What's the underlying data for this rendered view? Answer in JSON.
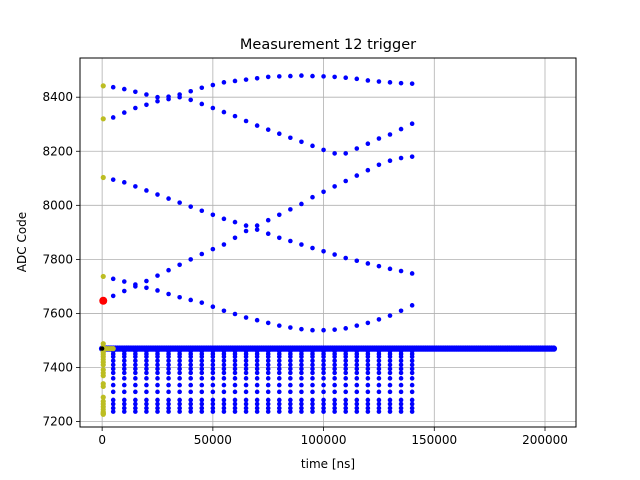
{
  "chart_data": {
    "type": "scatter",
    "title": "Measurement 12 trigger",
    "xlabel": "time [ns]",
    "ylabel": "ADC Code",
    "xlim": [
      -10000,
      214000
    ],
    "ylim": [
      7180,
      8545
    ],
    "xticks": [
      0,
      50000,
      100000,
      150000,
      200000
    ],
    "xtick_labels": [
      "0",
      "50000",
      "100000",
      "150000",
      "200000"
    ],
    "yticks": [
      7200,
      7400,
      7600,
      7800,
      8000,
      8200,
      8400
    ],
    "ytick_labels": [
      "7200",
      "7400",
      "7600",
      "7800",
      "8000",
      "8200",
      "8400"
    ],
    "grid": true,
    "colors": {
      "main": "#0000ff",
      "initial": "#bcbd22",
      "trigger": "#ff0000",
      "dark": "#000000"
    },
    "series": [
      {
        "color": "#0000ff",
        "description": "sinusoidal tracks of blue dots",
        "x_start": 5000,
        "x_end": 140000,
        "step": 5000,
        "tracks": [
          [
            8437,
            8430,
            8420,
            8410,
            8400,
            8402,
            8410,
            8422,
            8435,
            8445,
            8455,
            8460,
            8465,
            8470,
            8475,
            8477,
            8478,
            8480,
            8478,
            8477,
            8475,
            8472,
            8468,
            8462,
            8458,
            8455,
            8452,
            8450
          ],
          [
            8325,
            8343,
            8360,
            8372,
            8385,
            8393,
            8400,
            8390,
            8375,
            8360,
            8345,
            8330,
            8312,
            8295,
            8280,
            8265,
            8250,
            8235,
            8220,
            8205,
            8192,
            8192,
            8210,
            8228,
            8247,
            8262,
            8282,
            8302
          ],
          [
            8095,
            8085,
            8070,
            8055,
            8040,
            8025,
            8010,
            7995,
            7980,
            7965,
            7950,
            7938,
            7925,
            7910,
            7895,
            7880,
            7868,
            7855,
            7842,
            7830,
            7818,
            7805,
            7795,
            7785,
            7775,
            7765,
            7757,
            7748
          ],
          [
            7665,
            7683,
            7700,
            7720,
            7740,
            7760,
            7780,
            7800,
            7820,
            7838,
            7855,
            7880,
            7905,
            7925,
            7945,
            7965,
            7985,
            8005,
            8030,
            8050,
            8070,
            8090,
            8110,
            8130,
            8150,
            8165,
            8175,
            8180
          ],
          [
            7728,
            7718,
            7707,
            7695,
            7685,
            7672,
            7660,
            7650,
            7640,
            7625,
            7610,
            7598,
            7585,
            7575,
            7565,
            7555,
            7548,
            7542,
            7538,
            7538,
            7540,
            7545,
            7555,
            7565,
            7578,
            7592,
            7610,
            7630
          ],
          [
            7460,
            7460,
            7460,
            7460,
            7460,
            7460,
            7460,
            7460,
            7460,
            7460,
            7460,
            7460,
            7460,
            7460,
            7460,
            7460,
            7460,
            7460,
            7460,
            7460,
            7460,
            7460,
            7460,
            7460,
            7460,
            7460,
            7460,
            7460
          ],
          [
            7450,
            7450,
            7450,
            7450,
            7450,
            7450,
            7450,
            7450,
            7450,
            7450,
            7450,
            7450,
            7450,
            7450,
            7450,
            7450,
            7450,
            7450,
            7450,
            7450,
            7450,
            7450,
            7450,
            7450,
            7450,
            7450,
            7450,
            7450
          ],
          [
            7440,
            7440,
            7440,
            7440,
            7440,
            7440,
            7440,
            7440,
            7440,
            7440,
            7440,
            7440,
            7440,
            7440,
            7440,
            7440,
            7440,
            7440,
            7440,
            7440,
            7440,
            7440,
            7440,
            7440,
            7440,
            7440,
            7440,
            7440
          ],
          [
            7425,
            7425,
            7425,
            7425,
            7425,
            7425,
            7425,
            7425,
            7425,
            7425,
            7425,
            7425,
            7425,
            7425,
            7425,
            7425,
            7425,
            7425,
            7425,
            7425,
            7425,
            7425,
            7425,
            7425,
            7425,
            7425,
            7425,
            7425
          ],
          [
            7410,
            7410,
            7410,
            7410,
            7410,
            7410,
            7410,
            7410,
            7410,
            7410,
            7410,
            7410,
            7410,
            7410,
            7410,
            7410,
            7410,
            7410,
            7410,
            7410,
            7410,
            7410,
            7410,
            7410,
            7410,
            7410,
            7410,
            7410
          ],
          [
            7395,
            7395,
            7395,
            7395,
            7395,
            7395,
            7395,
            7395,
            7395,
            7395,
            7395,
            7395,
            7395,
            7395,
            7395,
            7395,
            7395,
            7395,
            7395,
            7395,
            7395,
            7395,
            7395,
            7395,
            7395,
            7395,
            7395,
            7395
          ],
          [
            7380,
            7380,
            7380,
            7380,
            7380,
            7380,
            7380,
            7380,
            7380,
            7380,
            7380,
            7380,
            7380,
            7380,
            7380,
            7380,
            7380,
            7380,
            7380,
            7380,
            7380,
            7380,
            7380,
            7380,
            7380,
            7380,
            7380,
            7380
          ],
          [
            7360,
            7360,
            7360,
            7360,
            7360,
            7360,
            7360,
            7360,
            7360,
            7360,
            7360,
            7360,
            7360,
            7360,
            7360,
            7360,
            7360,
            7360,
            7360,
            7360,
            7360,
            7360,
            7360,
            7360,
            7360,
            7360,
            7360,
            7360
          ],
          [
            7335,
            7335,
            7335,
            7335,
            7335,
            7335,
            7335,
            7335,
            7335,
            7335,
            7335,
            7335,
            7335,
            7335,
            7335,
            7335,
            7335,
            7335,
            7335,
            7335,
            7335,
            7335,
            7335,
            7335,
            7335,
            7335,
            7335,
            7335
          ],
          [
            7310,
            7310,
            7310,
            7310,
            7310,
            7310,
            7310,
            7310,
            7310,
            7310,
            7310,
            7310,
            7310,
            7310,
            7310,
            7310,
            7310,
            7310,
            7310,
            7310,
            7310,
            7310,
            7310,
            7310,
            7310,
            7310,
            7310,
            7310
          ],
          [
            7280,
            7280,
            7280,
            7280,
            7280,
            7280,
            7280,
            7280,
            7280,
            7280,
            7280,
            7280,
            7280,
            7280,
            7280,
            7280,
            7280,
            7280,
            7280,
            7280,
            7280,
            7280,
            7280,
            7280,
            7280,
            7280,
            7280,
            7280
          ],
          [
            7265,
            7265,
            7265,
            7265,
            7265,
            7265,
            7265,
            7265,
            7265,
            7265,
            7265,
            7265,
            7265,
            7265,
            7265,
            7265,
            7265,
            7265,
            7265,
            7265,
            7265,
            7265,
            7265,
            7265,
            7265,
            7265,
            7265,
            7265
          ],
          [
            7250,
            7250,
            7250,
            7250,
            7250,
            7250,
            7250,
            7250,
            7250,
            7250,
            7250,
            7250,
            7250,
            7250,
            7250,
            7250,
            7250,
            7250,
            7250,
            7250,
            7250,
            7250,
            7250,
            7250,
            7250,
            7250,
            7250,
            7250
          ],
          [
            7237,
            7237,
            7237,
            7237,
            7237,
            7237,
            7237,
            7237,
            7237,
            7237,
            7237,
            7237,
            7237,
            7237,
            7237,
            7237,
            7237,
            7237,
            7237,
            7237,
            7237,
            7237,
            7237,
            7237,
            7237,
            7237,
            7237,
            7237
          ]
        ]
      },
      {
        "color": "#0000ff",
        "description": "dense baseline band",
        "x_start": 0,
        "x_end": 204000,
        "step": 1000,
        "y": 7470
      },
      {
        "color": "#bcbd22",
        "description": "initial points at x≈0",
        "x": [
          500,
          500,
          500,
          500,
          500,
          500,
          500,
          500,
          500,
          500,
          500,
          500,
          500,
          500,
          500,
          500,
          500,
          500,
          500,
          500,
          500,
          500,
          500,
          500,
          500,
          500,
          500,
          500,
          500,
          2000,
          3000,
          4000,
          5000
        ],
        "y": [
          8442,
          8320,
          8103,
          7737,
          7488,
          7475,
          7468,
          7462,
          7455,
          7448,
          7440,
          7430,
          7420,
          7410,
          7392,
          7380,
          7370,
          7340,
          7330,
          7290,
          7275,
          7265,
          7255,
          7245,
          7236,
          7232,
          7230,
          7228,
          7227,
          7470,
          7470,
          7470,
          7470
        ]
      },
      {
        "color": "#ff0000",
        "description": "trigger point",
        "x": [
          500
        ],
        "y": [
          7647
        ]
      },
      {
        "color": "#000000",
        "description": "marker",
        "x": [
          0
        ],
        "y": [
          7470
        ]
      }
    ]
  }
}
